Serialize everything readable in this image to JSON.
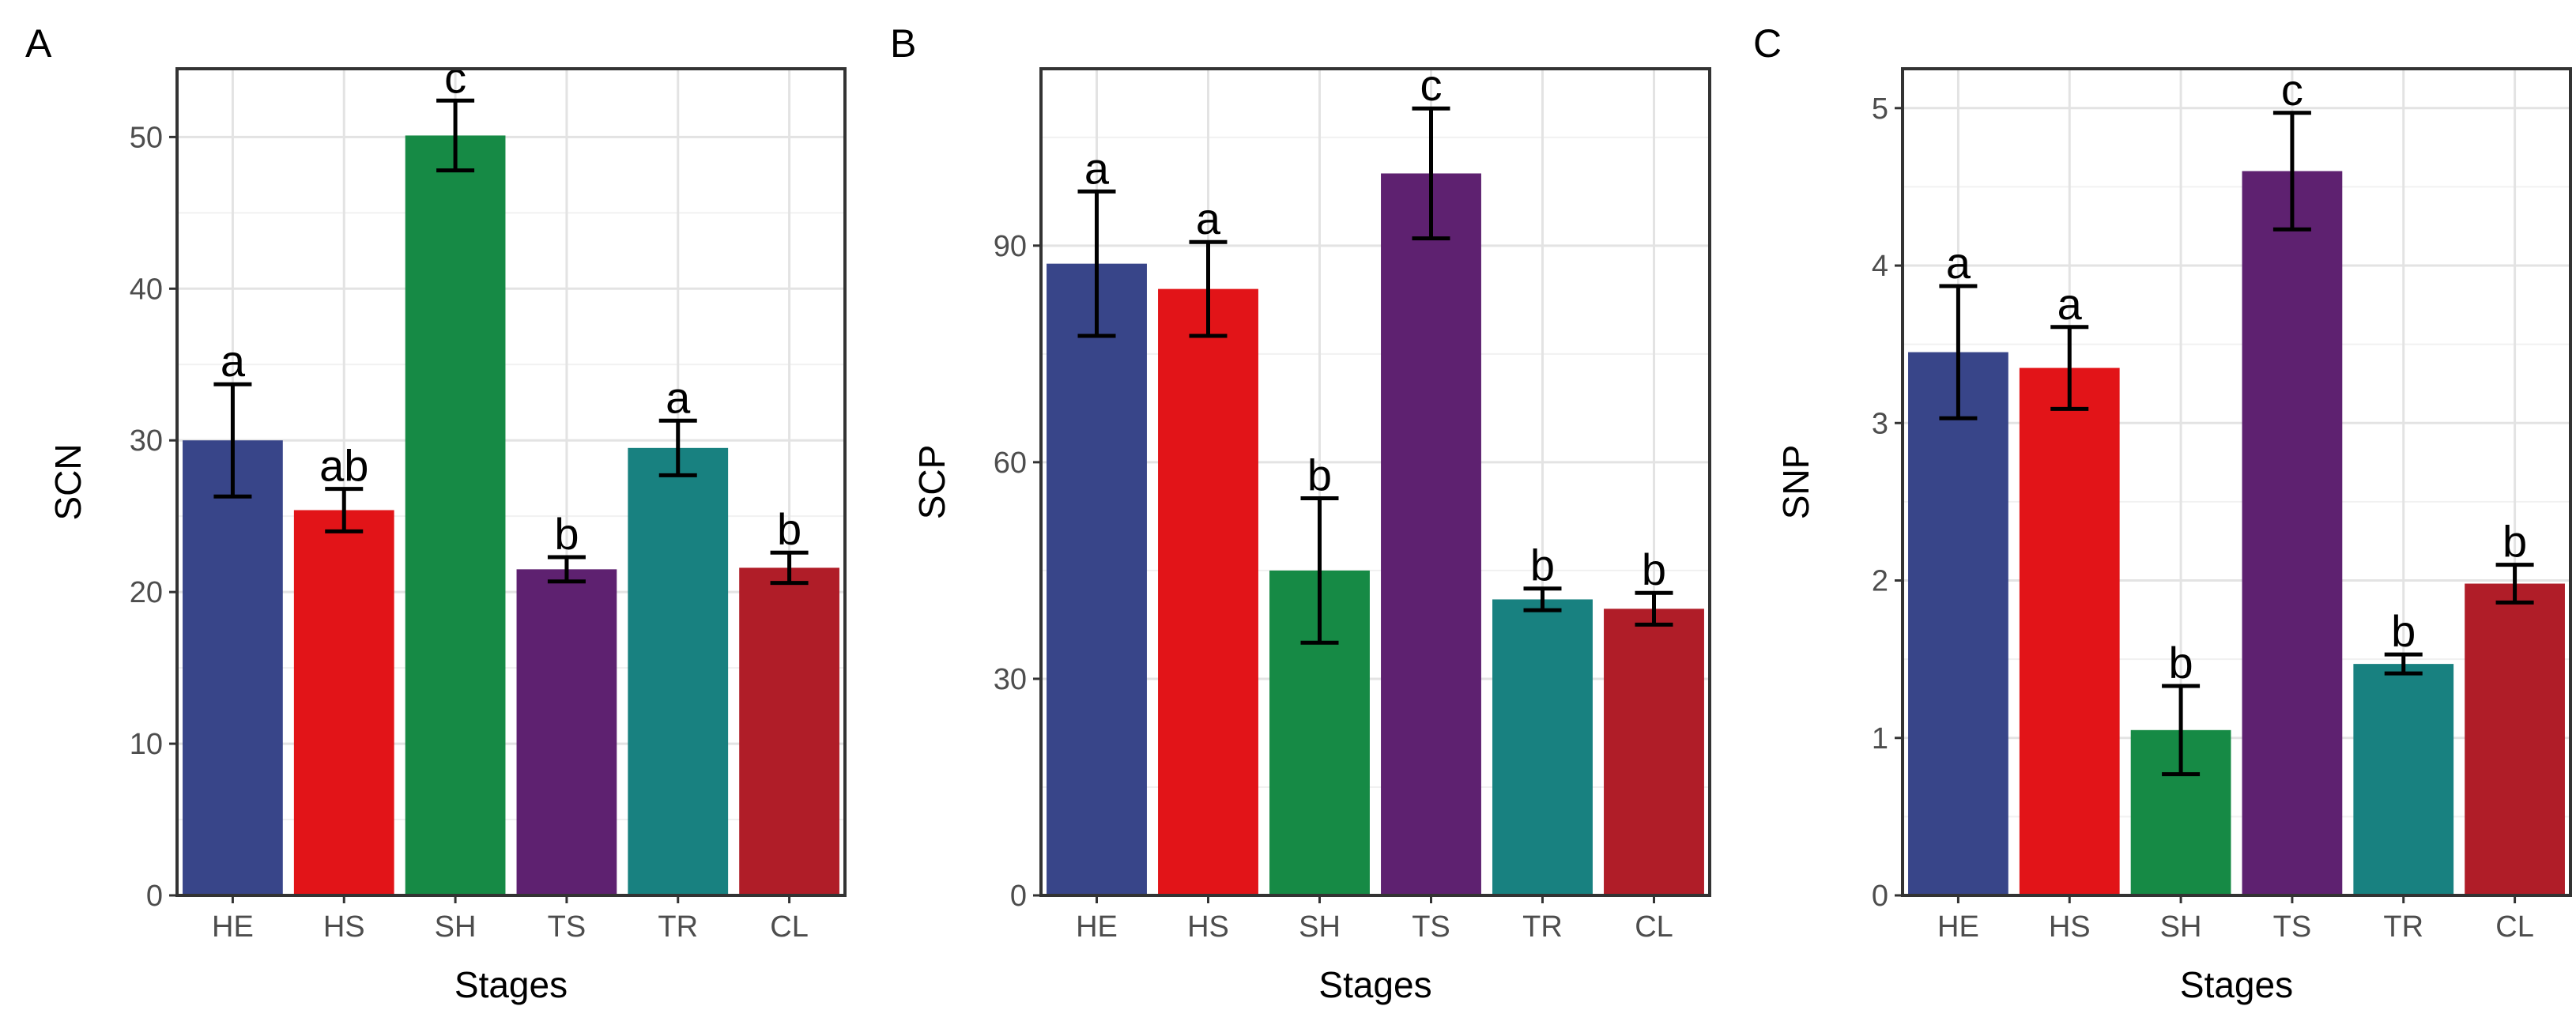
{
  "chart_data": [
    {
      "type": "bar",
      "panel_label": "A",
      "xlabel": "Stages",
      "ylabel": "SCN",
      "categories": [
        "HE",
        "HS",
        "SH",
        "TS",
        "TR",
        "CL"
      ],
      "values": [
        30.0,
        25.4,
        50.1,
        21.5,
        29.5,
        21.6
      ],
      "errors": [
        3.7,
        1.4,
        2.3,
        0.8,
        1.8,
        1.0
      ],
      "significance": [
        "a",
        "ab",
        "c",
        "b",
        "a",
        "b"
      ],
      "colors": [
        "#384589",
        "#E21418",
        "#168A45",
        "#5E2170",
        "#188180",
        "#B01D28"
      ],
      "ylim": [
        0,
        54.5
      ],
      "yticks": [
        0,
        10,
        20,
        30,
        40,
        50
      ],
      "ytick_labels": [
        "0",
        "10",
        "20",
        "30",
        "40",
        "50"
      ],
      "grid": true
    },
    {
      "type": "bar",
      "panel_label": "B",
      "xlabel": "Stages",
      "ylabel": "SCP",
      "categories": [
        "HE",
        "HS",
        "SH",
        "TS",
        "TR",
        "CL"
      ],
      "values": [
        87.5,
        84.0,
        45.0,
        100.0,
        41.0,
        39.7
      ],
      "errors": [
        10.0,
        6.5,
        10.0,
        9.0,
        1.5,
        2.2
      ],
      "significance": [
        "a",
        "a",
        "b",
        "c",
        "b",
        "b"
      ],
      "colors": [
        "#384589",
        "#E21418",
        "#168A45",
        "#5E2170",
        "#188180",
        "#B01D28"
      ],
      "ylim": [
        0,
        114.5
      ],
      "yticks": [
        0,
        30,
        60,
        90
      ],
      "ytick_labels": [
        "0",
        "30",
        "60",
        "90"
      ],
      "grid": true
    },
    {
      "type": "bar",
      "panel_label": "C",
      "xlabel": "Stages",
      "ylabel": "SNP",
      "categories": [
        "HE",
        "HS",
        "SH",
        "TS",
        "TR",
        "CL"
      ],
      "values": [
        3.45,
        3.35,
        1.05,
        4.6,
        1.47,
        1.98
      ],
      "errors": [
        0.42,
        0.26,
        0.28,
        0.37,
        0.06,
        0.12
      ],
      "significance": [
        "a",
        "a",
        "b",
        "c",
        "b",
        "b"
      ],
      "colors": [
        "#384589",
        "#E21418",
        "#168A45",
        "#5E2170",
        "#188180",
        "#B01D28"
      ],
      "ylim": [
        0,
        5.25
      ],
      "yticks": [
        0,
        1,
        2,
        3,
        4,
        5
      ],
      "ytick_labels": [
        "0",
        "1",
        "2",
        "3",
        "4",
        "5"
      ],
      "grid": true
    }
  ]
}
